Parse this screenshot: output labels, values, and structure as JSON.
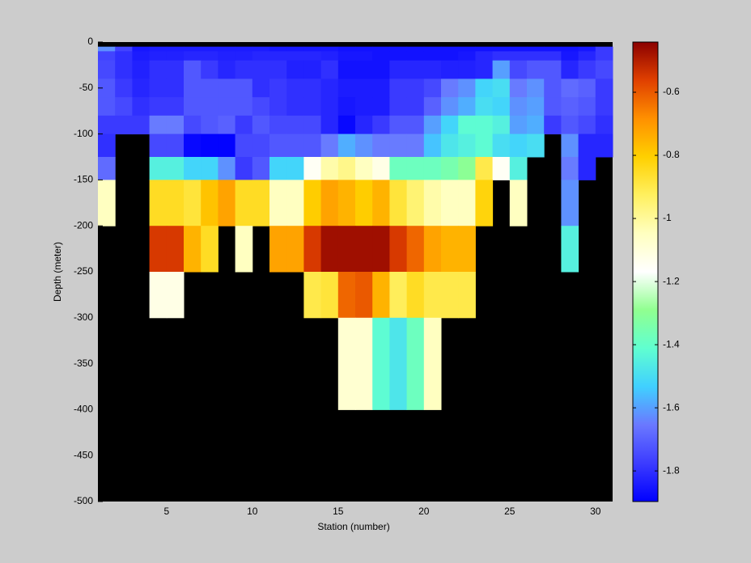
{
  "chart_data": {
    "type": "heatmap",
    "xlabel": "Station (number)",
    "ylabel": "Depth (meter)",
    "xlim": [
      1,
      31
    ],
    "ylim": [
      -500,
      0
    ],
    "xticks": [
      5,
      10,
      15,
      20,
      25,
      30
    ],
    "yticks": [
      0,
      -50,
      -100,
      -150,
      -200,
      -250,
      -300,
      -350,
      -400,
      -450,
      -500
    ],
    "x_edges": [
      1,
      2,
      3,
      4,
      5,
      6,
      7,
      8,
      9,
      10,
      11,
      12,
      13,
      14,
      15,
      16,
      17,
      18,
      19,
      20,
      21,
      22,
      23,
      24,
      25,
      26,
      27,
      28,
      29,
      30,
      31
    ],
    "y_edges": [
      -5,
      -10,
      -20,
      -40,
      -60,
      -80,
      -100,
      -125,
      -150,
      -200,
      -250,
      -300,
      -400
    ],
    "values": [
      [
        -1.62,
        -1.76,
        -1.85,
        -1.84,
        -1.84,
        -1.84,
        -1.84,
        -1.84,
        -1.84,
        -1.84,
        -1.85,
        -1.85,
        -1.85,
        -1.85,
        -1.86,
        -1.86,
        -1.86,
        -1.86,
        -1.86,
        -1.86,
        -1.86,
        -1.86,
        -1.86,
        -1.86,
        -1.86,
        -1.86,
        -1.86,
        -1.86,
        -1.85,
        -1.78
      ],
      [
        -1.76,
        -1.8,
        -1.84,
        -1.83,
        -1.83,
        -1.82,
        -1.82,
        -1.83,
        -1.83,
        -1.82,
        -1.82,
        -1.82,
        -1.82,
        -1.83,
        -1.85,
        -1.85,
        -1.86,
        -1.86,
        -1.86,
        -1.86,
        -1.86,
        -1.85,
        -1.82,
        -1.8,
        -1.8,
        -1.8,
        -1.8,
        -1.85,
        -1.82,
        -1.78
      ],
      [
        -1.75,
        -1.8,
        -1.83,
        -1.8,
        -1.8,
        -1.72,
        -1.78,
        -1.82,
        -1.8,
        -1.8,
        -1.8,
        -1.83,
        -1.83,
        -1.8,
        -1.86,
        -1.86,
        -1.86,
        -1.82,
        -1.82,
        -1.82,
        -1.83,
        -1.83,
        -1.82,
        -1.6,
        -1.75,
        -1.72,
        -1.72,
        -1.82,
        -1.78,
        -1.75
      ],
      [
        -1.72,
        -1.78,
        -1.82,
        -1.8,
        -1.8,
        -1.72,
        -1.72,
        -1.72,
        -1.72,
        -1.8,
        -1.78,
        -1.8,
        -1.8,
        -1.82,
        -1.84,
        -1.84,
        -1.84,
        -1.78,
        -1.78,
        -1.75,
        -1.65,
        -1.62,
        -1.52,
        -1.5,
        -1.65,
        -1.62,
        -1.72,
        -1.68,
        -1.7,
        -1.78
      ],
      [
        -1.72,
        -1.75,
        -1.8,
        -1.78,
        -1.78,
        -1.72,
        -1.72,
        -1.72,
        -1.72,
        -1.75,
        -1.78,
        -1.8,
        -1.8,
        -1.82,
        -1.85,
        -1.84,
        -1.84,
        -1.78,
        -1.78,
        -1.7,
        -1.62,
        -1.58,
        -1.5,
        -1.52,
        -1.62,
        -1.6,
        -1.72,
        -1.7,
        -1.72,
        -1.78
      ],
      [
        -1.78,
        -1.78,
        -1.78,
        -1.65,
        -1.65,
        -1.75,
        -1.72,
        -1.7,
        -1.78,
        -1.72,
        -1.75,
        -1.75,
        -1.75,
        -1.82,
        -1.88,
        -1.82,
        -1.78,
        -1.72,
        -1.72,
        -1.6,
        -1.52,
        -1.42,
        -1.42,
        -1.45,
        -1.6,
        -1.58,
        -1.78,
        -1.72,
        -1.75,
        -1.8
      ],
      [
        -1.8,
        null,
        null,
        -1.75,
        -1.75,
        -1.88,
        -1.89,
        -1.89,
        -1.75,
        -1.75,
        -1.72,
        -1.72,
        -1.72,
        -1.65,
        -1.58,
        -1.62,
        -1.65,
        -1.65,
        -1.65,
        -1.55,
        -1.48,
        -1.45,
        -1.42,
        -1.5,
        -1.52,
        -1.5,
        null,
        -1.62,
        -1.82,
        -1.82
      ],
      [
        -1.68,
        null,
        null,
        -1.45,
        -1.45,
        -1.52,
        -1.52,
        -1.62,
        -1.78,
        -1.72,
        -1.52,
        -1.52,
        -1.15,
        -1.02,
        -0.98,
        -1.05,
        -1.12,
        -1.38,
        -1.38,
        -1.38,
        -1.35,
        -1.3,
        -0.9,
        -1.15,
        -1.45,
        null,
        null,
        -1.65,
        -1.82,
        null
      ],
      [
        -1.05,
        null,
        null,
        -0.85,
        -0.85,
        -0.88,
        -0.78,
        -0.72,
        -0.85,
        -0.85,
        -1.05,
        -1.05,
        -0.8,
        -0.72,
        -0.75,
        -0.8,
        -0.75,
        -0.88,
        -0.95,
        -1.02,
        -1.05,
        -1.05,
        -0.82,
        null,
        -1.05,
        null,
        null,
        -1.62,
        null,
        null
      ],
      [
        null,
        null,
        null,
        -0.55,
        -0.55,
        -0.75,
        -0.85,
        null,
        -1.05,
        null,
        -0.72,
        -0.72,
        -0.55,
        -0.47,
        -0.47,
        -0.47,
        -0.47,
        -0.55,
        -0.62,
        -0.72,
        -0.75,
        -0.75,
        null,
        null,
        null,
        null,
        null,
        -1.45,
        null,
        null
      ],
      [
        null,
        null,
        null,
        -1.12,
        -1.12,
        null,
        null,
        null,
        null,
        null,
        null,
        null,
        -0.9,
        -0.88,
        -0.62,
        -0.6,
        -0.75,
        -0.92,
        -0.85,
        -0.9,
        -0.9,
        -0.9,
        null,
        null,
        null,
        null,
        null,
        null,
        null,
        null
      ],
      [
        null,
        null,
        null,
        null,
        null,
        null,
        null,
        null,
        null,
        null,
        null,
        null,
        null,
        null,
        -1.08,
        -1.08,
        -1.42,
        -1.48,
        -1.38,
        -1.05,
        null,
        null,
        null,
        null,
        null,
        null,
        null,
        null,
        null,
        null
      ]
    ],
    "clim": [
      -1.897,
      -0.441
    ],
    "colorbar_ticks": [
      -1.8,
      -1.6,
      -1.4,
      -1.2,
      -1,
      -0.8,
      -0.6
    ],
    "colormap": [
      "#0000ff",
      "#3c3cff",
      "#6a78ff",
      "#40d0ff",
      "#60ffd0",
      "#90ff90",
      "#ffffff",
      "#ffffc0",
      "#fff060",
      "#ffd000",
      "#ff9000",
      "#e04000",
      "#8b0000"
    ],
    "nan_color": "#000000"
  }
}
